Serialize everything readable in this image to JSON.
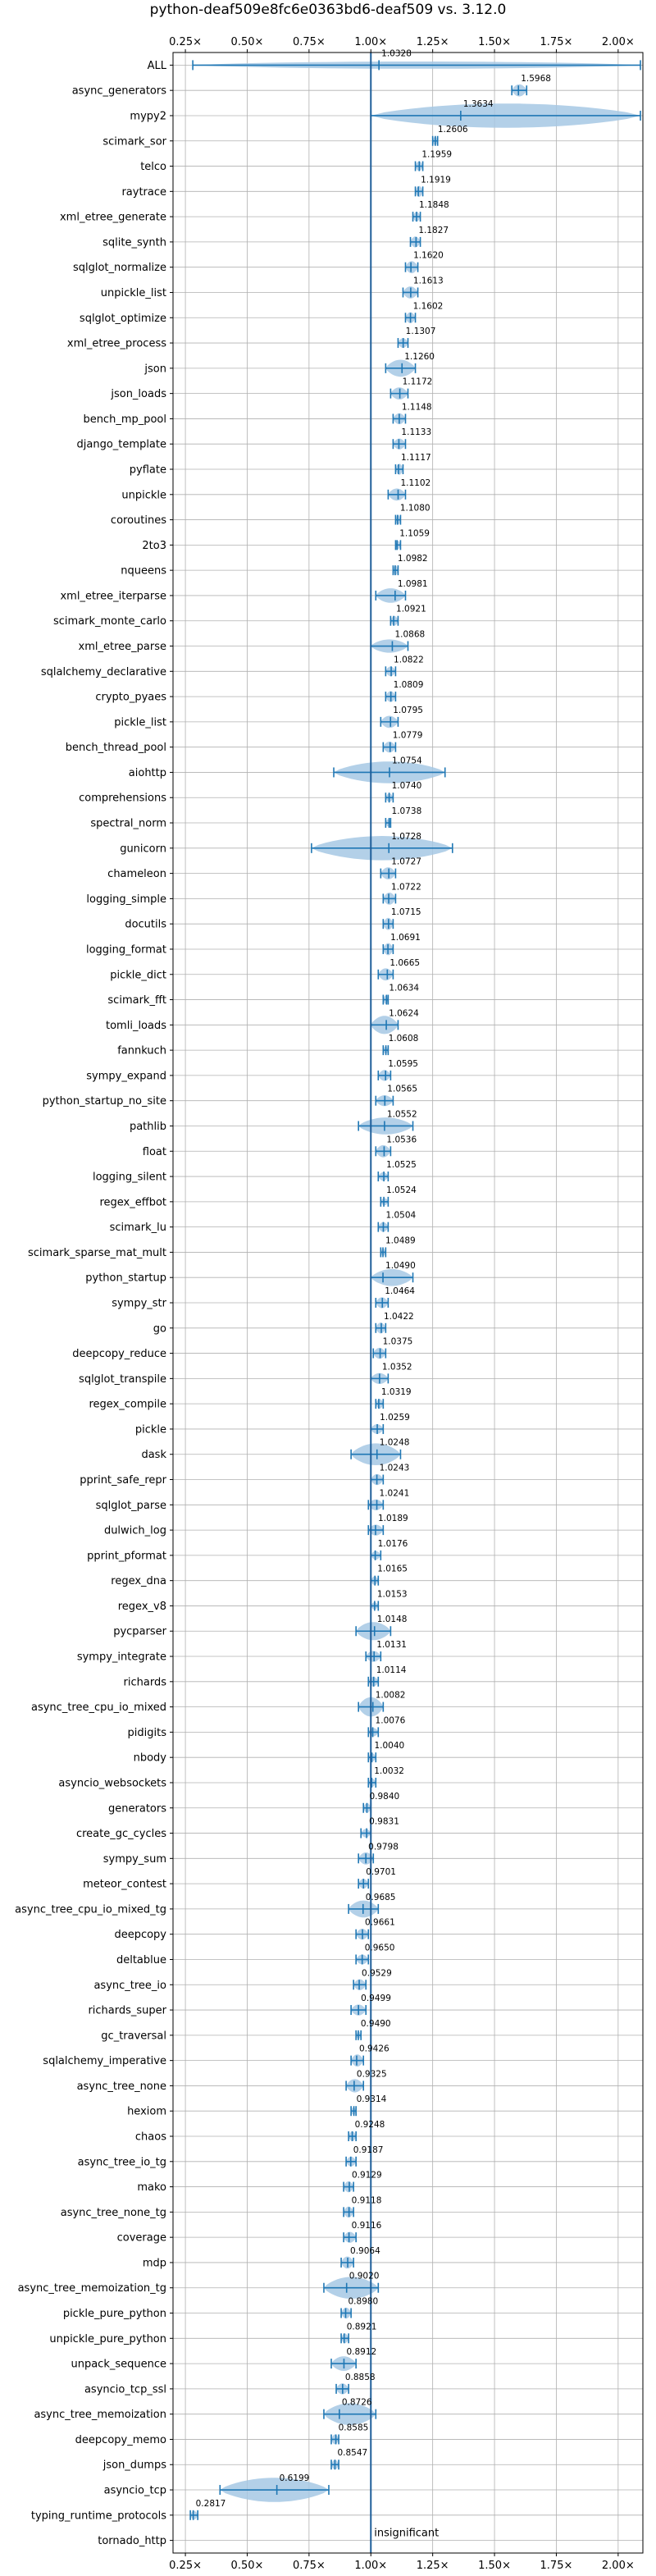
{
  "chart_data": {
    "type": "violin",
    "title": "python-deaf509e8fc6e0363bd6-deaf509 vs. 3.12.0",
    "xlabel": "",
    "ylabel": "",
    "xlim": [
      0.2,
      2.1
    ],
    "xticks": [
      0.25,
      0.5,
      0.75,
      1.0,
      1.25,
      1.5,
      1.75,
      2.0
    ],
    "xtick_labels": [
      "0.25×",
      "0.50×",
      "0.75×",
      "1.00×",
      "1.25×",
      "1.50×",
      "1.75×",
      "2.00×"
    ],
    "reference_line": 1.0,
    "grid": true,
    "annotation": "insignificant",
    "colors": {
      "violin_fill": "#a6c8e4",
      "violin_edge": "#1f77b4",
      "reference": "#1f5f9a"
    },
    "categories": [
      "ALL",
      "async_generators",
      "mypy2",
      "scimark_sor",
      "telco",
      "raytrace",
      "xml_etree_generate",
      "sqlite_synth",
      "sqlglot_normalize",
      "unpickle_list",
      "sqlglot_optimize",
      "xml_etree_process",
      "json",
      "json_loads",
      "bench_mp_pool",
      "django_template",
      "pyflate",
      "unpickle",
      "coroutines",
      "2to3",
      "nqueens",
      "xml_etree_iterparse",
      "scimark_monte_carlo",
      "xml_etree_parse",
      "sqlalchemy_declarative",
      "crypto_pyaes",
      "pickle_list",
      "bench_thread_pool",
      "aiohttp",
      "comprehensions",
      "spectral_norm",
      "gunicorn",
      "chameleon",
      "logging_simple",
      "docutils",
      "logging_format",
      "pickle_dict",
      "scimark_fft",
      "tomli_loads",
      "fannkuch",
      "sympy_expand",
      "python_startup_no_site",
      "pathlib",
      "float",
      "logging_silent",
      "regex_effbot",
      "scimark_lu",
      "scimark_sparse_mat_mult",
      "python_startup",
      "sympy_str",
      "go",
      "deepcopy_reduce",
      "sqlglot_transpile",
      "regex_compile",
      "pickle",
      "dask",
      "pprint_safe_repr",
      "sqlglot_parse",
      "dulwich_log",
      "pprint_pformat",
      "regex_dna",
      "regex_v8",
      "pycparser",
      "sympy_integrate",
      "richards",
      "async_tree_cpu_io_mixed",
      "pidigits",
      "nbody",
      "asyncio_websockets",
      "generators",
      "create_gc_cycles",
      "sympy_sum",
      "meteor_contest",
      "async_tree_cpu_io_mixed_tg",
      "deepcopy",
      "deltablue",
      "async_tree_io",
      "richards_super",
      "gc_traversal",
      "sqlalchemy_imperative",
      "async_tree_none",
      "hexiom",
      "chaos",
      "async_tree_io_tg",
      "mako",
      "async_tree_none_tg",
      "coverage",
      "mdp",
      "async_tree_memoization_tg",
      "pickle_pure_python",
      "unpickle_pure_python",
      "unpack_sequence",
      "asyncio_tcp_ssl",
      "async_tree_memoization",
      "deepcopy_memo",
      "json_dumps",
      "asyncio_tcp",
      "typing_runtime_protocols",
      "tornado_http"
    ],
    "values": [
      1.0328,
      1.5968,
      1.3634,
      1.2606,
      1.1959,
      1.1919,
      1.1848,
      1.1827,
      1.162,
      1.1613,
      1.1602,
      1.1307,
      1.126,
      1.1172,
      1.1148,
      1.1133,
      1.1117,
      1.1102,
      1.108,
      1.1059,
      1.0982,
      1.0981,
      1.0921,
      1.0868,
      1.0822,
      1.0809,
      1.0795,
      1.0779,
      1.0754,
      1.074,
      1.0738,
      1.0728,
      1.0727,
      1.0722,
      1.0715,
      1.0691,
      1.0665,
      1.0634,
      1.0624,
      1.0608,
      1.0595,
      1.0565,
      1.0552,
      1.0536,
      1.0525,
      1.0524,
      1.0504,
      1.0489,
      1.049,
      1.0464,
      1.0422,
      1.0375,
      1.0352,
      1.0319,
      1.0259,
      1.0248,
      1.0243,
      1.0241,
      1.0189,
      1.0176,
      1.0165,
      1.0153,
      1.0148,
      1.0131,
      1.0114,
      1.0082,
      1.0076,
      1.004,
      1.0032,
      0.984,
      0.9831,
      0.9798,
      0.9701,
      0.9685,
      0.9661,
      0.965,
      0.9529,
      0.9499,
      0.949,
      0.9426,
      0.9325,
      0.9314,
      0.9248,
      0.9187,
      0.9129,
      0.9118,
      0.9116,
      0.9064,
      0.902,
      0.898,
      0.8921,
      0.8912,
      0.8858,
      0.8726,
      0.8585,
      0.8547,
      0.6199,
      0.2817,
      null
    ],
    "value_labels": [
      "1.0328",
      "1.5968",
      "1.3634",
      "1.2606",
      "1.1959",
      "1.1919",
      "1.1848",
      "1.1827",
      "1.1620",
      "1.1613",
      "1.1602",
      "1.1307",
      "1.1260",
      "1.1172",
      "1.1148",
      "1.1133",
      "1.1117",
      "1.1102",
      "1.1080",
      "1.1059",
      "1.0982",
      "1.0981",
      "1.0921",
      "1.0868",
      "1.0822",
      "1.0809",
      "1.0795",
      "1.0779",
      "1.0754",
      "1.0740",
      "1.0738",
      "1.0728",
      "1.0727",
      "1.0722",
      "1.0715",
      "1.0691",
      "1.0665",
      "1.0634",
      "1.0624",
      "1.0608",
      "1.0595",
      "1.0565",
      "1.0552",
      "1.0536",
      "1.0525",
      "1.0524",
      "1.0504",
      "1.0489",
      "1.0490",
      "1.0464",
      "1.0422",
      "1.0375",
      "1.0352",
      "1.0319",
      "1.0259",
      "1.0248",
      "1.0243",
      "1.0241",
      "1.0189",
      "1.0176",
      "1.0165",
      "1.0153",
      "1.0148",
      "1.0131",
      "1.0114",
      "1.0082",
      "1.0076",
      "1.0040",
      "1.0032",
      "0.9840",
      "0.9831",
      "0.9798",
      "0.9701",
      "0.9685",
      "0.9661",
      "0.9650",
      "0.9529",
      "0.9499",
      "0.9490",
      "0.9426",
      "0.9325",
      "0.9314",
      "0.9248",
      "0.9187",
      "0.9129",
      "0.9118",
      "0.9116",
      "0.9064",
      "0.9020",
      "0.8980",
      "0.8921",
      "0.8912",
      "0.8858",
      "0.8726",
      "0.8585",
      "0.8547",
      "0.6199",
      "0.2817",
      ""
    ],
    "ranges": [
      [
        0.28,
        2.09
      ],
      [
        1.57,
        1.63
      ],
      [
        1.0,
        2.09
      ],
      [
        1.25,
        1.27
      ],
      [
        1.18,
        1.21
      ],
      [
        1.18,
        1.21
      ],
      [
        1.17,
        1.2
      ],
      [
        1.16,
        1.2
      ],
      [
        1.14,
        1.19
      ],
      [
        1.13,
        1.19
      ],
      [
        1.14,
        1.18
      ],
      [
        1.11,
        1.15
      ],
      [
        1.06,
        1.18
      ],
      [
        1.08,
        1.15
      ],
      [
        1.09,
        1.14
      ],
      [
        1.09,
        1.14
      ],
      [
        1.1,
        1.13
      ],
      [
        1.07,
        1.14
      ],
      [
        1.1,
        1.12
      ],
      [
        1.1,
        1.12
      ],
      [
        1.09,
        1.11
      ],
      [
        1.02,
        1.14
      ],
      [
        1.08,
        1.11
      ],
      [
        1.0,
        1.15
      ],
      [
        1.06,
        1.1
      ],
      [
        1.06,
        1.1
      ],
      [
        1.04,
        1.11
      ],
      [
        1.05,
        1.1
      ],
      [
        0.85,
        1.3
      ],
      [
        1.06,
        1.09
      ],
      [
        1.06,
        1.08
      ],
      [
        0.76,
        1.33
      ],
      [
        1.04,
        1.1
      ],
      [
        1.05,
        1.1
      ],
      [
        1.05,
        1.09
      ],
      [
        1.05,
        1.09
      ],
      [
        1.03,
        1.09
      ],
      [
        1.05,
        1.07
      ],
      [
        1.0,
        1.11
      ],
      [
        1.05,
        1.07
      ],
      [
        1.03,
        1.08
      ],
      [
        1.02,
        1.09
      ],
      [
        0.95,
        1.17
      ],
      [
        1.02,
        1.08
      ],
      [
        1.03,
        1.07
      ],
      [
        1.04,
        1.07
      ],
      [
        1.03,
        1.07
      ],
      [
        1.04,
        1.06
      ],
      [
        1.0,
        1.17
      ],
      [
        1.02,
        1.07
      ],
      [
        1.02,
        1.06
      ],
      [
        1.01,
        1.06
      ],
      [
        1.0,
        1.07
      ],
      [
        1.02,
        1.05
      ],
      [
        1.0,
        1.05
      ],
      [
        0.92,
        1.12
      ],
      [
        1.0,
        1.05
      ],
      [
        0.99,
        1.05
      ],
      [
        0.99,
        1.05
      ],
      [
        1.0,
        1.04
      ],
      [
        1.0,
        1.03
      ],
      [
        1.0,
        1.03
      ],
      [
        0.94,
        1.08
      ],
      [
        0.98,
        1.04
      ],
      [
        0.99,
        1.03
      ],
      [
        0.95,
        1.05
      ],
      [
        0.99,
        1.03
      ],
      [
        0.99,
        1.02
      ],
      [
        0.99,
        1.02
      ],
      [
        0.97,
        1.0
      ],
      [
        0.96,
        1.0
      ],
      [
        0.95,
        1.01
      ],
      [
        0.95,
        0.99
      ],
      [
        0.91,
        1.03
      ],
      [
        0.94,
        0.99
      ],
      [
        0.94,
        0.99
      ],
      [
        0.93,
        0.98
      ],
      [
        0.92,
        0.98
      ],
      [
        0.94,
        0.96
      ],
      [
        0.92,
        0.97
      ],
      [
        0.9,
        0.97
      ],
      [
        0.92,
        0.94
      ],
      [
        0.91,
        0.94
      ],
      [
        0.9,
        0.94
      ],
      [
        0.89,
        0.93
      ],
      [
        0.89,
        0.93
      ],
      [
        0.89,
        0.94
      ],
      [
        0.88,
        0.93
      ],
      [
        0.81,
        1.03
      ],
      [
        0.88,
        0.92
      ],
      [
        0.88,
        0.91
      ],
      [
        0.84,
        0.94
      ],
      [
        0.86,
        0.91
      ],
      [
        0.81,
        1.02
      ],
      [
        0.84,
        0.87
      ],
      [
        0.84,
        0.87
      ],
      [
        0.39,
        0.83
      ],
      [
        0.27,
        0.3
      ],
      null
    ],
    "widths": [
      0.3,
      0.5,
      1.0,
      0.35,
      0.4,
      0.45,
      0.4,
      0.45,
      0.5,
      0.5,
      0.45,
      0.4,
      0.7,
      0.5,
      0.45,
      0.45,
      0.45,
      0.5,
      0.4,
      0.35,
      0.4,
      0.6,
      0.4,
      0.55,
      0.4,
      0.45,
      0.5,
      0.45,
      0.9,
      0.35,
      0.3,
      1.0,
      0.5,
      0.5,
      0.5,
      0.5,
      0.5,
      0.35,
      0.75,
      0.3,
      0.45,
      0.45,
      0.7,
      0.5,
      0.35,
      0.3,
      0.4,
      0.3,
      0.7,
      0.45,
      0.45,
      0.45,
      0.45,
      0.4,
      0.4,
      0.9,
      0.45,
      0.45,
      0.45,
      0.35,
      0.35,
      0.3,
      0.75,
      0.45,
      0.4,
      0.8,
      0.35,
      0.35,
      0.35,
      0.4,
      0.35,
      0.5,
      0.4,
      0.7,
      0.45,
      0.4,
      0.45,
      0.45,
      0.3,
      0.5,
      0.55,
      0.3,
      0.4,
      0.4,
      0.45,
      0.45,
      0.45,
      0.5,
      0.9,
      0.45,
      0.4,
      0.6,
      0.45,
      0.9,
      0.4,
      0.4,
      1.0,
      0.35,
      0
    ]
  }
}
